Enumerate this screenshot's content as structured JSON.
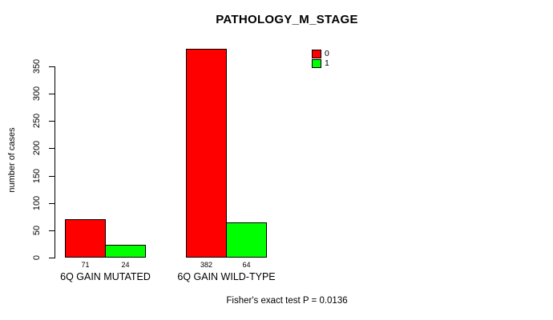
{
  "chart_data": {
    "type": "bar",
    "title": "PATHOLOGY_M_STAGE",
    "xlabel": "",
    "ylabel": "number of cases",
    "categories": [
      "6Q GAIN MUTATED",
      "6Q GAIN WILD-TYPE"
    ],
    "series": [
      {
        "name": "0",
        "color": "#ff0000",
        "values": [
          71,
          382
        ]
      },
      {
        "name": "1",
        "color": "#00ff00",
        "values": [
          24,
          64
        ]
      }
    ],
    "ylim": [
      0,
      350
    ],
    "yticks": [
      0,
      50,
      100,
      150,
      200,
      250,
      300,
      350
    ],
    "grid": false,
    "legend_position": "top-right",
    "bar_border_color": "#000000",
    "value_labels_shown": true
  },
  "footer": {
    "text": "Fisher's exact test P = 0.0136"
  }
}
